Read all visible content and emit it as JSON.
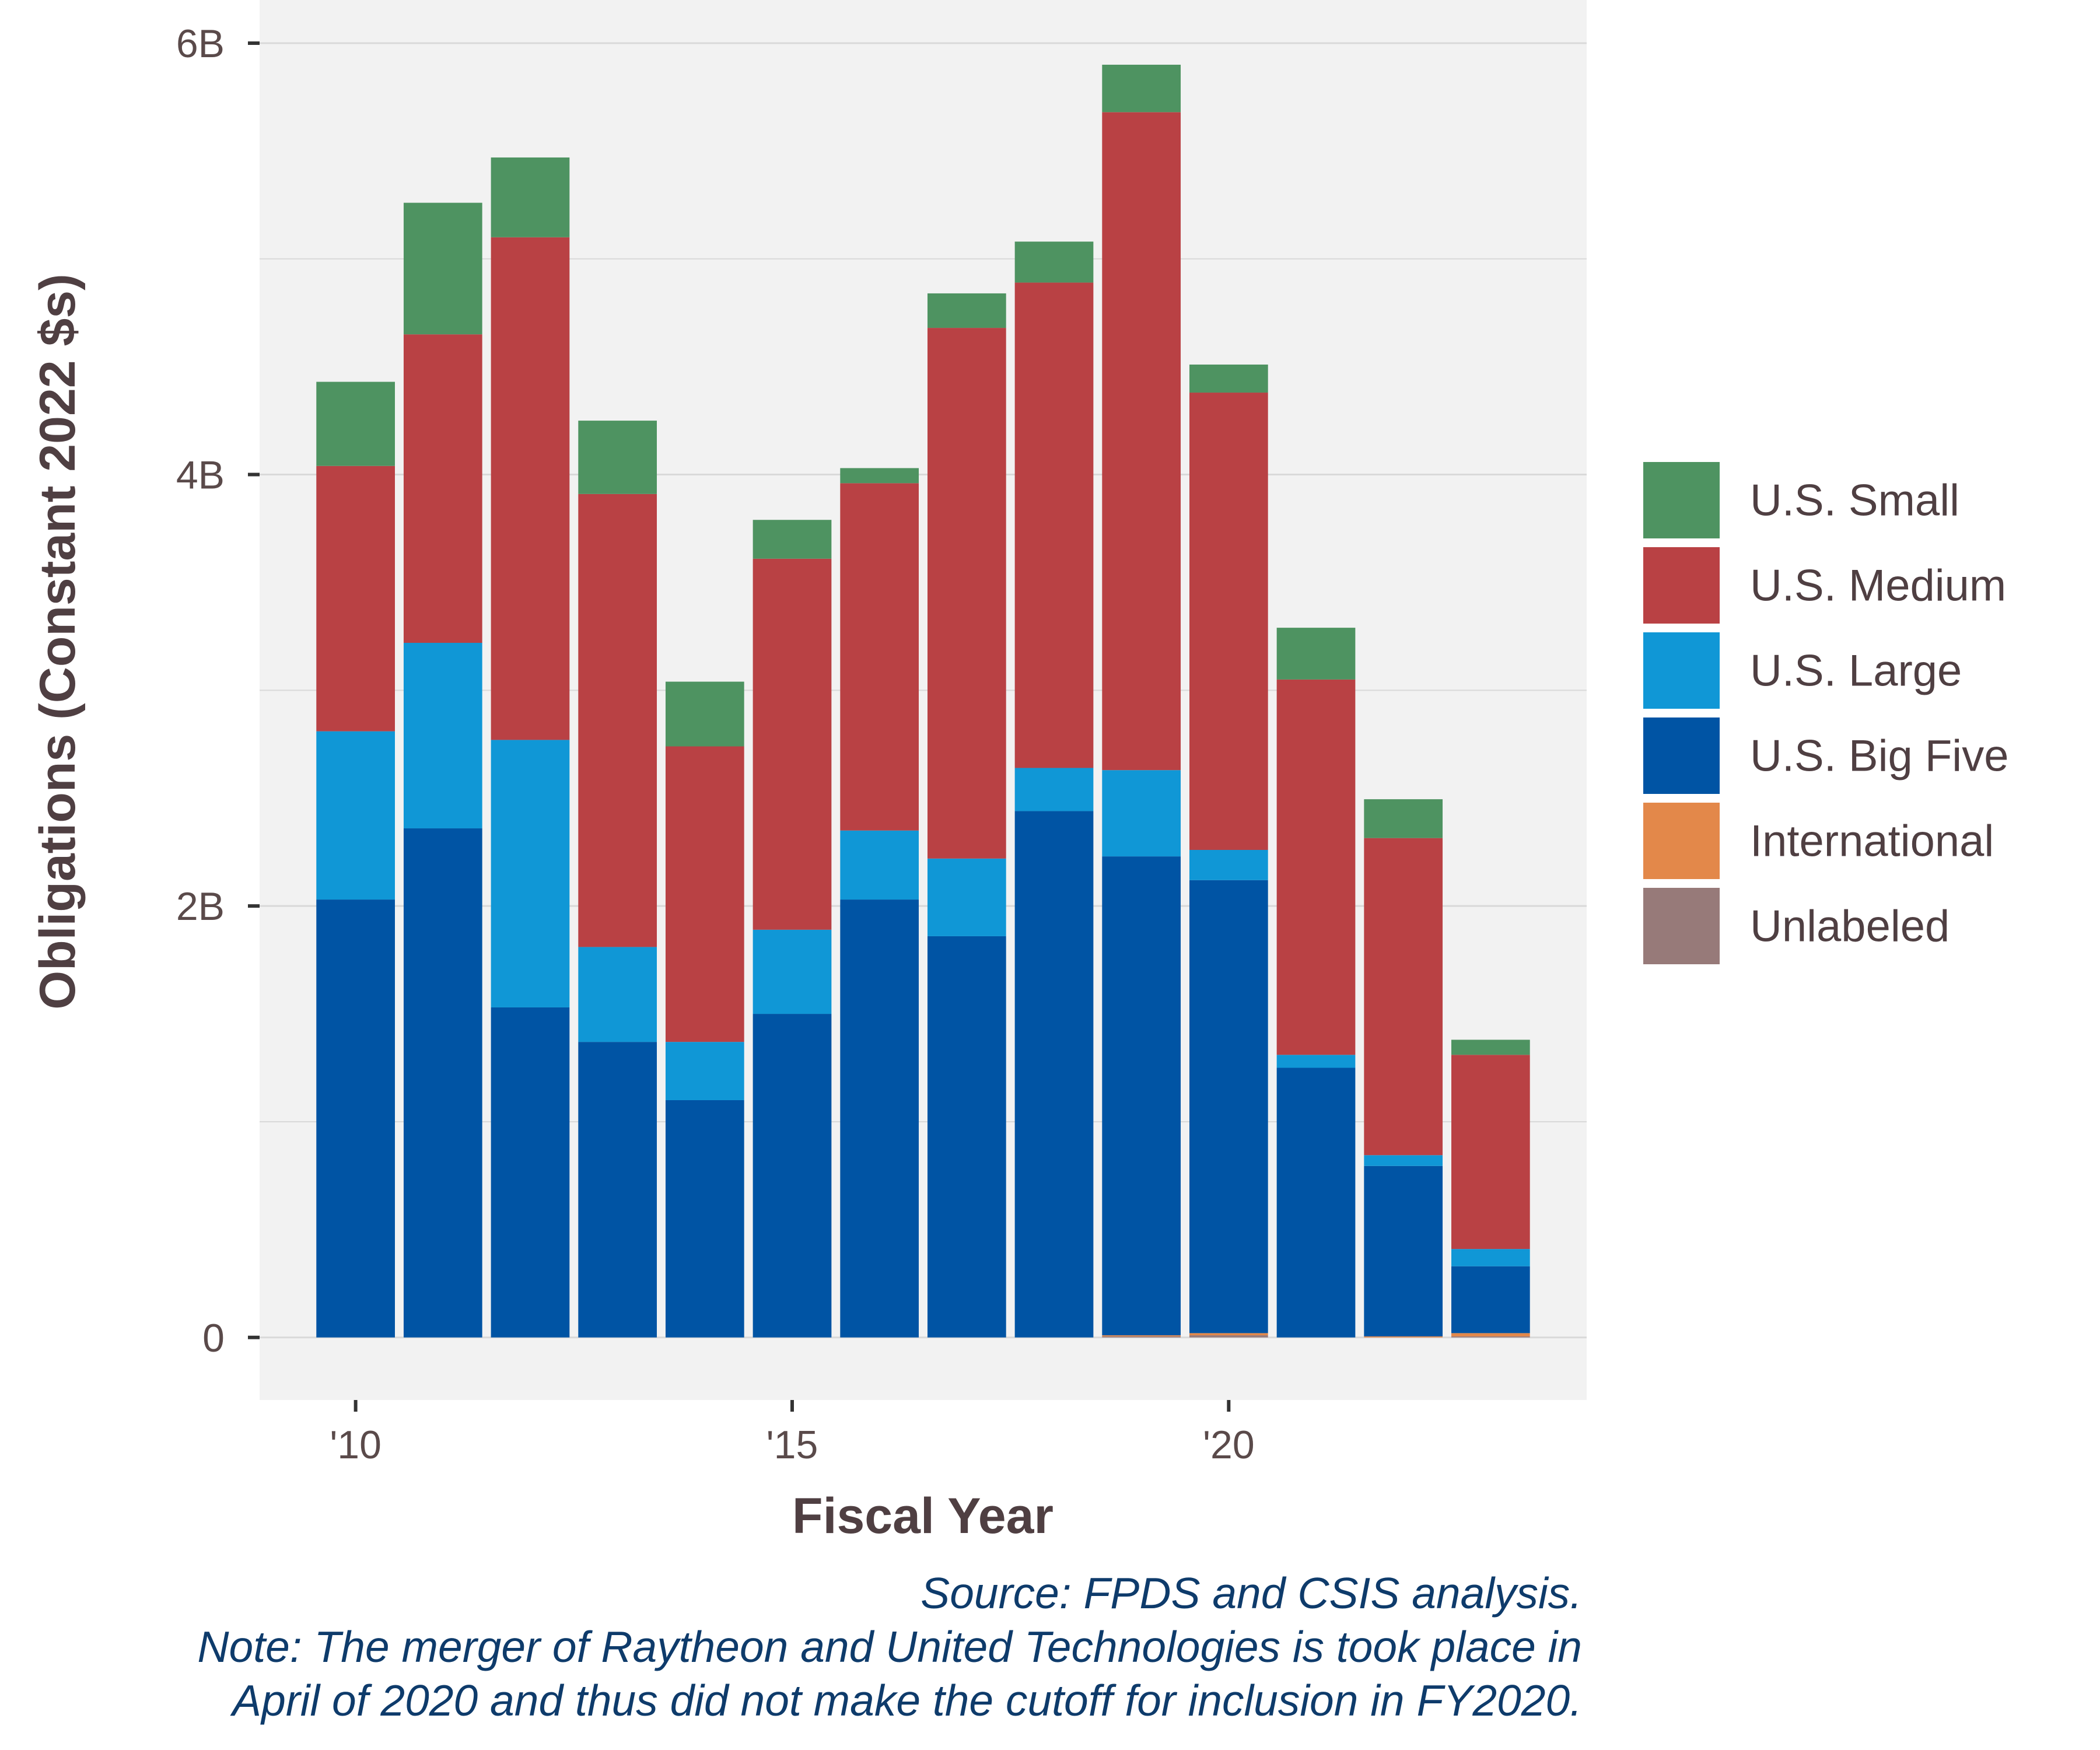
{
  "chart_data": {
    "type": "bar",
    "stacked": true,
    "xlabel": "Fiscal Year",
    "ylabel": "Obligations (Constant 2022 $s)",
    "x": [
      2010,
      2011,
      2012,
      2013,
      2014,
      2015,
      2016,
      2017,
      2018,
      2019,
      2020,
      2021,
      2022,
      2023
    ],
    "x_ticks": [
      {
        "value": 2010,
        "label": "'10"
      },
      {
        "value": 2015,
        "label": "'15"
      },
      {
        "value": 2020,
        "label": "'20"
      }
    ],
    "y_ticks": [
      {
        "value": 0,
        "label": "0"
      },
      {
        "value": 2000000000,
        "label": "2B"
      },
      {
        "value": 4000000000,
        "label": "4B"
      },
      {
        "value": 6000000000,
        "label": "6B"
      }
    ],
    "ylim": [
      -290000000,
      6200000000
    ],
    "xlim": [
      2008.9,
      2024.1
    ],
    "grid": true,
    "legend_position": "right",
    "series": [
      {
        "name": "Unlabeled",
        "color": "#977a79",
        "values": [
          0,
          0,
          0,
          0,
          0,
          0,
          0,
          0,
          0,
          5000000,
          10000000,
          0,
          0,
          5000000
        ]
      },
      {
        "name": "International",
        "color": "#e3884a",
        "values": [
          0,
          0,
          0,
          0,
          0,
          0,
          0,
          0,
          0,
          5000000,
          10000000,
          0,
          5000000,
          15000000
        ]
      },
      {
        "name": "U.S. Big Five",
        "color": "#0054a4",
        "values": [
          2030000000,
          2360000000,
          1530000000,
          1370000000,
          1100000000,
          1500000000,
          2030000000,
          1860000000,
          2440000000,
          2220000000,
          2100000000,
          1250000000,
          790000000,
          310000000
        ]
      },
      {
        "name": "U.S. Large",
        "color": "#1097d6",
        "values": [
          780000000,
          860000000,
          1240000000,
          440000000,
          270000000,
          390000000,
          320000000,
          360000000,
          200000000,
          400000000,
          140000000,
          60000000,
          50000000,
          80000000
        ]
      },
      {
        "name": "U.S. Medium",
        "color": "#b94144",
        "values": [
          1230000000,
          1430000000,
          2330000000,
          2100000000,
          1370000000,
          1720000000,
          1610000000,
          2460000000,
          2250000000,
          3050000000,
          2120000000,
          1740000000,
          1470000000,
          900000000
        ]
      },
      {
        "name": "U.S. Small",
        "color": "#4e9361",
        "values": [
          390000000,
          610000000,
          370000000,
          340000000,
          300000000,
          180000000,
          70000000,
          160000000,
          190000000,
          220000000,
          130000000,
          240000000,
          180000000,
          70000000
        ]
      }
    ],
    "legend_order": [
      "U.S. Small",
      "U.S. Medium",
      "U.S. Large",
      "U.S. Big Five",
      "International",
      "Unlabeled"
    ],
    "panel_background": "#f2f2f2",
    "grid_color": "#d9d9d9"
  },
  "caption": {
    "source": "Source: FPDS and CSIS analysis.",
    "note_line1": "Note: The merger of Raytheon and United Technologies is took place in",
    "note_line2": "April of 2020 and thus did not make the cutoff for inclusion in FY2020."
  }
}
